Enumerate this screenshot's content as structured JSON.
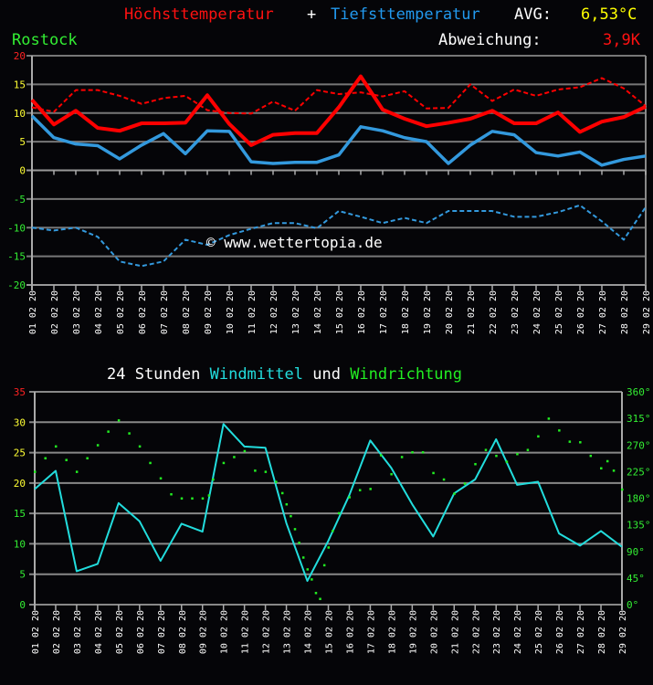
{
  "header": {
    "title_max": "Höchsttemperatur",
    "title_plus": "+",
    "title_min": "Tiefsttemperatur",
    "avg_label": "AVG:",
    "avg_value": "6,53°C",
    "location": "Rostock",
    "deviation_label": "Abweichung:",
    "deviation_value": "3,9K"
  },
  "watermark": "© www.wettertopia.de",
  "wind_title": {
    "prefix": "24 Stunden",
    "mean": "Windmittel",
    "and": "und",
    "direction": "Windrichtung"
  },
  "colors": {
    "background": "#050508",
    "max_temp": "#ff0000",
    "min_temp": "#3399dd",
    "avg_value": "#ffff00",
    "location": "#33dd33",
    "wind_mean": "#22dddd",
    "wind_dir": "#22ee22",
    "grid": "#888888"
  },
  "chart_data": [
    {
      "type": "line",
      "title": "Höchsttemperatur + Tiefsttemperatur",
      "ylim": [
        -20,
        20
      ],
      "yticks": [
        20,
        15,
        10,
        5,
        0,
        -5,
        -10,
        -15,
        -20
      ],
      "categories": [
        "01.02.20",
        "02.02.20",
        "03.02.20",
        "04.02.20",
        "05.02.20",
        "06.02.20",
        "07.02.20",
        "08.02.20",
        "09.02.20",
        "10.02.20",
        "11.02.20",
        "12.02.20",
        "13.02.20",
        "14.02.20",
        "15.02.20",
        "16.02.20",
        "17.02.20",
        "18.02.20",
        "19.02.20",
        "20.02.20",
        "21.02.20",
        "22.02.20",
        "23.02.20",
        "24.02.20",
        "25.02.20",
        "26.02.20",
        "27.02.20",
        "28.02.20",
        "29.02.20"
      ],
      "series": [
        {
          "name": "Höchsttemperatur",
          "style": "solid",
          "color": "#ff0000",
          "values": [
            12.3,
            8.0,
            10.4,
            7.4,
            6.9,
            8.2,
            8.2,
            8.3,
            13.1,
            8.1,
            4.4,
            6.2,
            6.5,
            6.5,
            11.0,
            16.4,
            10.6,
            9.0,
            7.7,
            8.3,
            9.0,
            10.4,
            8.2,
            8.2,
            10.1,
            6.7,
            8.5,
            9.3,
            11.1
          ]
        },
        {
          "name": "Tiefsttemperatur",
          "style": "solid",
          "color": "#3399dd",
          "values": [
            9.5,
            5.7,
            4.6,
            4.3,
            2.0,
            4.4,
            6.4,
            2.9,
            6.9,
            6.8,
            1.5,
            1.2,
            1.4,
            1.4,
            2.7,
            7.6,
            6.9,
            5.7,
            5.0,
            1.2,
            4.4,
            6.8,
            6.2,
            3.1,
            2.5,
            3.2,
            0.9,
            1.9,
            2.5
          ]
        },
        {
          "name": "Höchsttemperatur (Rekord/Vergleich)",
          "style": "dashed",
          "color": "#ff0000",
          "values": [
            11.0,
            10.2,
            14.0,
            14.0,
            13.0,
            11.6,
            12.6,
            13.0,
            10.5,
            10.0,
            9.9,
            12.0,
            10.4,
            14.0,
            13.3,
            13.6,
            12.9,
            13.8,
            10.8,
            10.9,
            15.0,
            12.1,
            14.1,
            13.0,
            14.1,
            14.5,
            16.1,
            14.3,
            11.2
          ]
        },
        {
          "name": "Tiefsttemperatur (Rekord/Vergleich)",
          "style": "dashed",
          "color": "#3399dd",
          "values": [
            -10.0,
            -10.5,
            -10.0,
            -11.6,
            -15.9,
            -16.7,
            -15.9,
            -12.1,
            -13.0,
            -11.3,
            -10.2,
            -9.2,
            -9.2,
            -10.1,
            -7.1,
            -8.1,
            -9.2,
            -8.3,
            -9.2,
            -7.1,
            -7.1,
            -7.1,
            -8.1,
            -8.1,
            -7.3,
            -6.1,
            -8.9,
            -12.1,
            -6.4
          ]
        }
      ]
    },
    {
      "type": "line",
      "title": "24 Stunden Windmittel und Windrichtung",
      "ylim": [
        0,
        35
      ],
      "yticks": [
        35,
        30,
        25,
        20,
        15,
        10,
        5,
        0
      ],
      "y2lim": [
        0,
        360
      ],
      "y2ticks": [
        "360°",
        "315°",
        "270°",
        "225°",
        "180°",
        "135°",
        "90°",
        "45°",
        "0°"
      ],
      "categories": [
        "01.02.20",
        "02.02.20",
        "03.02.20",
        "04.02.20",
        "05.02.20",
        "06.02.20",
        "07.02.20",
        "08.02.20",
        "09.02.20",
        "10.02.20",
        "11.02.20",
        "12.02.20",
        "13.02.20",
        "14.02.20",
        "15.02.20",
        "16.02.20",
        "17.02.20",
        "18.02.20",
        "19.02.20",
        "20.02.20",
        "21.02.20",
        "22.02.20",
        "23.02.20",
        "24.02.20",
        "25.02.20",
        "26.02.20",
        "27.02.20",
        "28.02.20",
        "29.02.20"
      ],
      "series": [
        {
          "name": "Windmittel",
          "style": "solid",
          "color": "#22dddd",
          "values": [
            19.0,
            22.0,
            5.5,
            6.7,
            16.7,
            13.7,
            7.2,
            13.3,
            12.0,
            29.7,
            26.0,
            25.8,
            13.4,
            3.9,
            10.5,
            18.0,
            27.0,
            22.5,
            16.5,
            11.2,
            18.3,
            20.6,
            27.2,
            19.7,
            20.2,
            11.7,
            9.7,
            12.1,
            9.5
          ]
        },
        {
          "name": "Windrichtung",
          "style": "dots",
          "color": "#22ee22",
          "axis": "y2",
          "x": [
            1,
            1.5,
            2,
            2.5,
            3,
            3.5,
            4,
            4.5,
            5,
            5.5,
            6,
            6.5,
            7,
            7.5,
            8,
            8.5,
            9,
            9.3,
            9.5,
            10,
            10.5,
            11,
            11.5,
            12,
            12.5,
            12.8,
            13,
            13.2,
            13.4,
            13.6,
            13.8,
            14,
            14.2,
            14.4,
            14.6,
            14.8,
            15,
            15.2,
            15.5,
            16,
            16.5,
            17,
            17.5,
            18,
            18.5,
            19,
            19.5,
            20,
            20.5,
            21,
            21.5,
            22,
            22.5,
            23,
            23.5,
            24,
            24.5,
            25,
            25.5,
            26,
            26.5,
            27,
            27.5,
            28,
            28.3,
            28.6,
            29
          ],
          "values": [
            225,
            248,
            268,
            245,
            225,
            248,
            270,
            293,
            312,
            290,
            268,
            240,
            214,
            187,
            180,
            180,
            180,
            185,
            212,
            240,
            250,
            260,
            227,
            225,
            208,
            189,
            170,
            150,
            128,
            105,
            80,
            60,
            43,
            20,
            10,
            67,
            97,
            125,
            155,
            182,
            194,
            196,
            253,
            221,
            250,
            258,
            258,
            223,
            212,
            188,
            205,
            238,
            262,
            252,
            242,
            255,
            262,
            285,
            315,
            295,
            276,
            275,
            252,
            231,
            243,
            227,
            195
          ]
        }
      ],
      "xlabel": "",
      "ylabel": ""
    }
  ]
}
